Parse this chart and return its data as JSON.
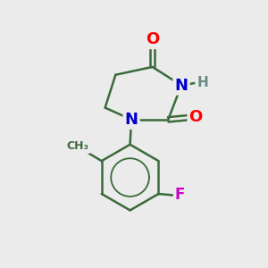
{
  "background_color": "#ebebeb",
  "bond_color": "#3a6b3a",
  "bond_width": 1.8,
  "atom_colors": {
    "O": "#ff0000",
    "N": "#0000cc",
    "H": "#6a8a8a",
    "F": "#cc00cc",
    "C": "#3a6b3a"
  },
  "figsize": [
    3.0,
    3.0
  ],
  "dpi": 100
}
